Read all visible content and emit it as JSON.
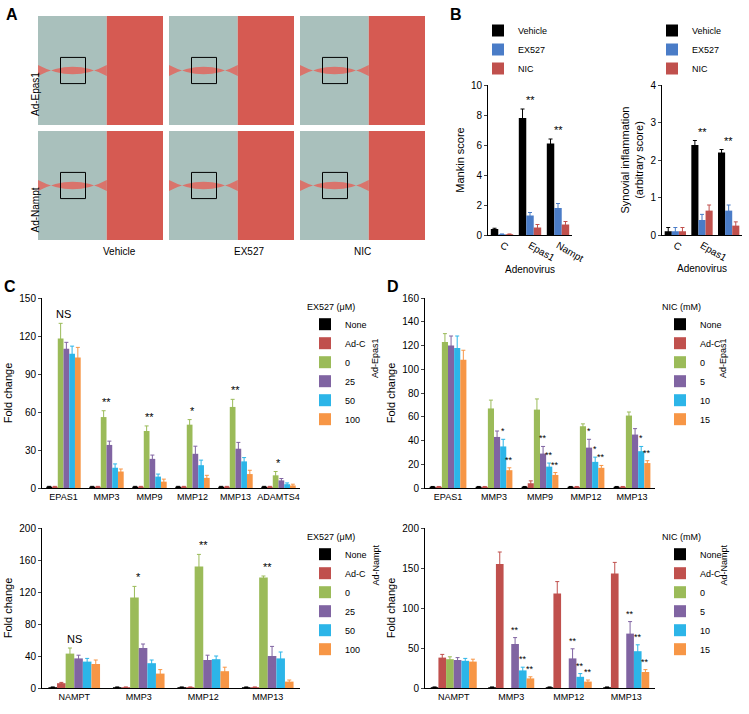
{
  "chart_data": [
    {
      "panel": "A",
      "type": "image_grid",
      "rows": [
        "Ad-Epas1",
        "Ad-Nampt"
      ],
      "columns": [
        "Vehicle",
        "EX527",
        "NIC"
      ]
    },
    {
      "panel": "B",
      "type": "bar",
      "y_label": "Mankin score",
      "x_label": "Adenovirus",
      "categories": [
        "C",
        "Epas1",
        "Nampt"
      ],
      "series": [
        {
          "name": "Vehicle",
          "color": "#000000",
          "values": [
            0.4,
            7.8,
            6.1
          ],
          "errors": [
            0.05,
            0.6,
            0.3
          ]
        },
        {
          "name": "EX527",
          "color": "#4a7cc7",
          "values": [
            0.05,
            1.3,
            1.8
          ],
          "errors": [
            0.02,
            0.2,
            0.3
          ]
        },
        {
          "name": "NIC",
          "color": "#c0504d",
          "values": [
            0.05,
            0.5,
            0.7
          ],
          "errors": [
            0.02,
            0.2,
            0.2
          ]
        }
      ],
      "ylim": [
        0,
        10
      ],
      "yticks": [
        0,
        2,
        4,
        6,
        8,
        10
      ],
      "grid": false,
      "legend": "top",
      "significance": [
        {
          "category": "Epas1",
          "text": "**"
        },
        {
          "category": "Nampt",
          "text": "**"
        }
      ]
    },
    {
      "type": "bar",
      "y_label": "Synovial inflammation\n(arbitrary score)",
      "x_label": "Adenovirus",
      "categories": [
        "C",
        "Epas1",
        "Nampt"
      ],
      "series": [
        {
          "name": "Vehicle",
          "color": "#000000",
          "values": [
            0.1,
            2.4,
            2.2
          ],
          "errors": [
            0.1,
            0.12,
            0.08
          ]
        },
        {
          "name": "EX527",
          "color": "#4a7cc7",
          "values": [
            0.1,
            0.4,
            0.65
          ],
          "errors": [
            0.1,
            0.15,
            0.15
          ]
        },
        {
          "name": "NIC",
          "color": "#c0504d",
          "values": [
            0.1,
            0.65,
            0.25
          ],
          "errors": [
            0.1,
            0.15,
            0.1
          ]
        }
      ],
      "ylim": [
        0,
        4
      ],
      "yticks": [
        0,
        1,
        2,
        3,
        4
      ],
      "grid": false,
      "legend": "top",
      "significance": [
        {
          "category": "Epas1",
          "text": "**"
        },
        {
          "category": "Nampt",
          "text": "**"
        }
      ]
    },
    {
      "panel": "C",
      "type": "bar",
      "y_label": "Fold change",
      "categories": [
        "EPAS1",
        "MMP3",
        "MMP9",
        "MMP12",
        "MMP13",
        "ADAMTS4"
      ],
      "legend_title": "EX527 (μM)",
      "legend_side_label": "Ad-Epas1",
      "series": [
        {
          "name": "None",
          "color": "#000000",
          "values": [
            1,
            1,
            1,
            1,
            1,
            1
          ],
          "errors": [
            0.3,
            0.3,
            0.3,
            0.3,
            0.3,
            0.3
          ]
        },
        {
          "name": "Ad-C",
          "color": "#c0504d",
          "values": [
            1,
            1,
            1,
            1,
            1,
            1
          ],
          "errors": [
            0.3,
            0.3,
            0.3,
            0.3,
            0.3,
            0.3
          ]
        },
        {
          "name": "0",
          "color": "#9bbb59",
          "values": [
            118,
            56,
            45,
            50,
            64,
            10
          ],
          "errors": [
            12,
            5,
            4,
            4,
            6,
            3
          ]
        },
        {
          "name": "25",
          "color": "#8064a2",
          "values": [
            110,
            34,
            23,
            27,
            31,
            6
          ],
          "errors": [
            5,
            3,
            3,
            6,
            5,
            1.5
          ]
        },
        {
          "name": "50",
          "color": "#2cb5e8",
          "values": [
            106,
            16,
            9,
            18,
            21,
            3
          ],
          "errors": [
            6,
            3,
            2,
            4,
            3,
            1
          ]
        },
        {
          "name": "100",
          "color": "#f79646",
          "values": [
            103,
            13,
            5,
            8,
            11,
            2
          ],
          "errors": [
            8,
            2,
            2,
            2,
            3,
            1
          ]
        }
      ],
      "ylim": [
        0,
        150
      ],
      "yticks": [
        0,
        30,
        60,
        90,
        120,
        150
      ],
      "grid": false,
      "legend": "right",
      "significance": [
        {
          "category": "EPAS1",
          "text": "NS"
        },
        {
          "category": "MMP3",
          "text": "**"
        },
        {
          "category": "MMP9",
          "text": "**"
        },
        {
          "category": "MMP12",
          "text": "*"
        },
        {
          "category": "MMP13",
          "text": "**"
        },
        {
          "category": "ADAMTS4",
          "text": "*"
        }
      ]
    },
    {
      "type": "bar",
      "y_label": "Fold change",
      "categories": [
        "NAMPT",
        "MMP3",
        "MMP12",
        "MMP13"
      ],
      "legend_title": "EX527 (μM)",
      "legend_side_label": "Ad-Nampt",
      "series": [
        {
          "name": "None",
          "color": "#000000",
          "values": [
            1,
            1,
            1,
            1
          ],
          "errors": [
            0.3,
            0.3,
            0.3,
            0.3
          ]
        },
        {
          "name": "Ad-C",
          "color": "#c0504d",
          "values": [
            6,
            1,
            1,
            1
          ],
          "errors": [
            1,
            0.3,
            0.3,
            0.3
          ]
        },
        {
          "name": "0",
          "color": "#9bbb59",
          "values": [
            43,
            113,
            152,
            138
          ],
          "errors": [
            7,
            14,
            15,
            2
          ]
        },
        {
          "name": "25",
          "color": "#8064a2",
          "values": [
            37,
            50,
            35,
            40
          ],
          "errors": [
            4,
            5,
            6,
            12
          ]
        },
        {
          "name": "50",
          "color": "#2cb5e8",
          "values": [
            33,
            31,
            36,
            37
          ],
          "errors": [
            4,
            4,
            4,
            8
          ]
        },
        {
          "name": "100",
          "color": "#f79646",
          "values": [
            30,
            18,
            21,
            8
          ],
          "errors": [
            5,
            5,
            5,
            2
          ]
        }
      ],
      "ylim": [
        0,
        200
      ],
      "yticks": [
        0,
        40,
        80,
        120,
        160,
        200
      ],
      "grid": false,
      "legend": "right",
      "significance": [
        {
          "category": "NAMPT",
          "text": "NS"
        },
        {
          "category": "MMP3",
          "text": "*"
        },
        {
          "category": "MMP12",
          "text": "**"
        },
        {
          "category": "MMP13",
          "text": "**"
        }
      ]
    },
    {
      "panel": "D",
      "type": "bar",
      "y_label": "Fold change",
      "categories": [
        "EPAS1",
        "MMP3",
        "MMP9",
        "MMP12",
        "MMP13"
      ],
      "legend_title": "NIC (mM)",
      "legend_side_label": "Ad-Epas1",
      "series": [
        {
          "name": "None",
          "color": "#000000",
          "values": [
            1,
            1,
            1,
            1,
            1
          ],
          "errors": [
            0.3,
            0.3,
            0.3,
            0.3,
            0.3
          ]
        },
        {
          "name": "Ad-C",
          "color": "#c0504d",
          "values": [
            1,
            1,
            4,
            1,
            1
          ],
          "errors": [
            0.3,
            0.3,
            2,
            0.3,
            0.3
          ]
        },
        {
          "name": "0",
          "color": "#9bbb59",
          "values": [
            123,
            67,
            66,
            52,
            61
          ],
          "errors": [
            7,
            7,
            9,
            2,
            3
          ]
        },
        {
          "name": "5",
          "color": "#8064a2",
          "values": [
            120,
            43,
            29,
            34,
            45
          ],
          "errors": [
            8,
            5,
            6,
            7,
            5
          ]
        },
        {
          "name": "10",
          "color": "#2cb5e8",
          "values": [
            118,
            35,
            18,
            22,
            31
          ],
          "errors": [
            10,
            6,
            3,
            4,
            4
          ]
        },
        {
          "name": "15",
          "color": "#f79646",
          "values": [
            108,
            15,
            11,
            17,
            21
          ],
          "errors": [
            8,
            2,
            2,
            2,
            2
          ]
        }
      ],
      "ylim": [
        0,
        160
      ],
      "yticks": [
        0,
        20,
        40,
        60,
        80,
        100,
        120,
        140,
        160
      ],
      "grid": false,
      "legend": "right",
      "significance": [
        {
          "category": "MMP3",
          "series": "10",
          "text": "*"
        },
        {
          "category": "MMP3",
          "series": "15",
          "text": "**"
        },
        {
          "category": "MMP9",
          "series": "5",
          "text": "**"
        },
        {
          "category": "MMP9",
          "series": "10",
          "text": "**"
        },
        {
          "category": "MMP9",
          "series": "15",
          "text": "**"
        },
        {
          "category": "MMP12",
          "series": "5",
          "text": "*"
        },
        {
          "category": "MMP12",
          "series": "10",
          "text": "*"
        },
        {
          "category": "MMP12",
          "series": "15",
          "text": "**"
        },
        {
          "category": "MMP13",
          "series": "10",
          "text": "*"
        },
        {
          "category": "MMP13",
          "series": "15",
          "text": "**"
        }
      ]
    },
    {
      "type": "bar",
      "y_label": "Fold change",
      "categories": [
        "NAMPT",
        "MMP3",
        "MMP12",
        "MMP13"
      ],
      "legend_title": "NIC (mM)",
      "legend_side_label": "Ad-Nampt",
      "series": [
        {
          "name": "None",
          "color": "#000000",
          "values": [
            1,
            1,
            1,
            1
          ],
          "errors": [
            0.3,
            0.3,
            0.3,
            0.3
          ]
        },
        {
          "name": "Ad-C",
          "color": "#c0504d",
          "values": [
            38,
            155,
            118,
            143
          ],
          "errors": [
            4,
            15,
            15,
            14
          ]
        },
        {
          "name": "0",
          "color": "#9bbb59",
          "values": [
            36,
            null,
            null,
            null
          ],
          "errors": [
            3,
            null,
            null,
            null
          ]
        },
        {
          "name": "5",
          "color": "#8064a2",
          "values": [
            35,
            55,
            37,
            68
          ],
          "errors": [
            3,
            8,
            12,
            15
          ]
        },
        {
          "name": "10",
          "color": "#2cb5e8",
          "values": [
            34,
            22,
            14,
            46
          ],
          "errors": [
            3,
            4,
            4,
            8
          ]
        },
        {
          "name": "15",
          "color": "#f79646",
          "values": [
            33,
            12,
            8,
            20
          ],
          "errors": [
            3,
            2,
            2,
            3
          ]
        }
      ],
      "ylim": [
        0,
        200
      ],
      "yticks": [
        0,
        50,
        100,
        150,
        200
      ],
      "grid": false,
      "legend": "right",
      "significance": [
        {
          "category": "MMP3",
          "series": "5",
          "text": "**"
        },
        {
          "category": "MMP3",
          "series": "10",
          "text": "**"
        },
        {
          "category": "MMP3",
          "series": "15",
          "text": "**"
        },
        {
          "category": "MMP12",
          "series": "5",
          "text": "**"
        },
        {
          "category": "MMP12",
          "series": "10",
          "text": "**"
        },
        {
          "category": "MMP12",
          "series": "15",
          "text": "**"
        },
        {
          "category": "MMP13",
          "series": "5",
          "text": "**"
        },
        {
          "category": "MMP13",
          "series": "10",
          "text": "**"
        },
        {
          "category": "MMP13",
          "series": "15",
          "text": "**"
        }
      ]
    }
  ]
}
